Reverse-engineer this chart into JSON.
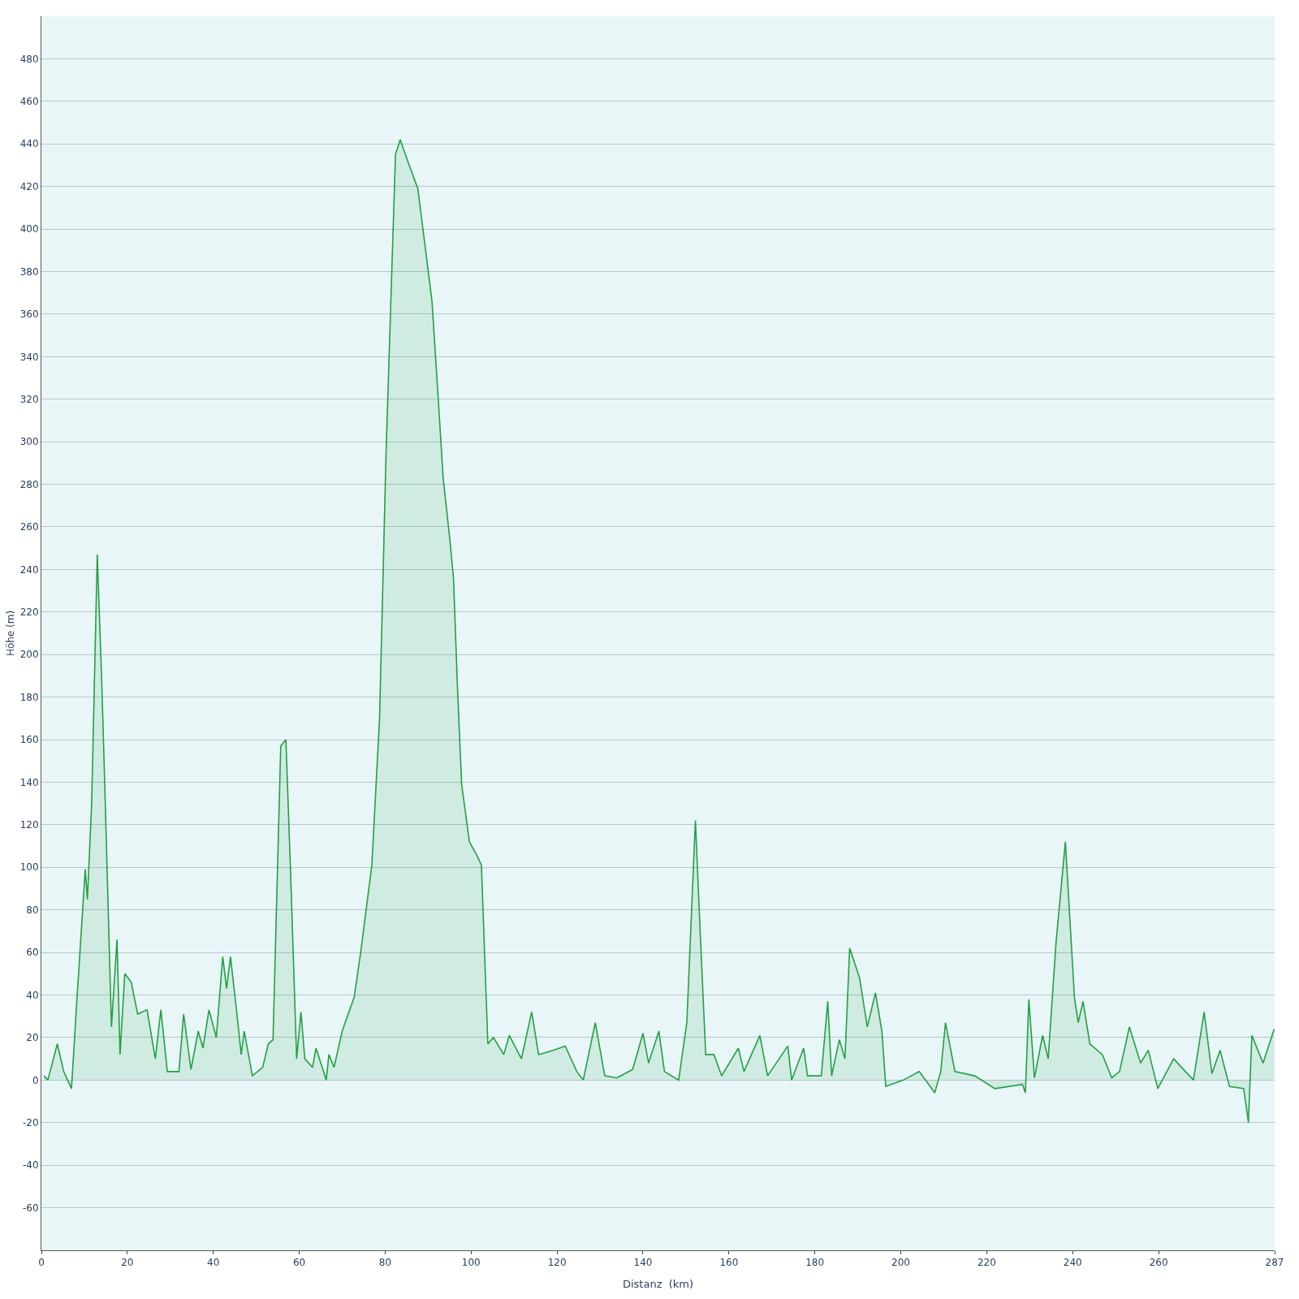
{
  "chart_data": {
    "type": "area",
    "xlabel": "Distanz  (km)",
    "ylabel": "Höhe (m)",
    "xlim": [
      0,
      287
    ],
    "ylim": [
      -80,
      500
    ],
    "xticks": [
      0,
      20,
      40,
      60,
      80,
      100,
      120,
      140,
      160,
      180,
      200,
      220,
      240,
      260,
      287
    ],
    "yticks": [
      {
        "value": -80,
        "label": null
      },
      -60,
      -40,
      -20,
      0,
      20,
      40,
      60,
      80,
      100,
      120,
      140,
      160,
      180,
      200,
      220,
      240,
      260,
      280,
      300,
      320,
      340,
      360,
      380,
      400,
      420,
      440,
      460,
      480,
      {
        "value": 500,
        "label": null
      }
    ],
    "grid": "y",
    "series": [
      {
        "color": "#22a045",
        "x": [
          0.6,
          1.5,
          3.7,
          5.2,
          7,
          8.3,
          10.2,
          10.7,
          11.7,
          13,
          14,
          14.8,
          16.3,
          17.6,
          18.3,
          19.4,
          20.9,
          22.4,
          24.6,
          26.5,
          27.8,
          29.3,
          32,
          33.1,
          34.8,
          36.5,
          37.6,
          39,
          40.7,
          42.2,
          43.1,
          44,
          45.4,
          46.5,
          47.2,
          49.1,
          51.5,
          52.8,
          53.9,
          55.7,
          56.9,
          58,
          59.4,
          60.4,
          61.3,
          63.1,
          63.9,
          66.3,
          66.9,
          68.1,
          70,
          72.8,
          74.3,
          76.9,
          78.7,
          80.2,
          82.4,
          83.5,
          85.4,
          87.6,
          89.1,
          90.9,
          92.2,
          93.5,
          95,
          95.9,
          96.8,
          97.8,
          99.6,
          101.5,
          102.4,
          103.9,
          105.2,
          107.6,
          108.9,
          111.7,
          114.1,
          115.7,
          119.1,
          121.9,
          124.6,
          126.1,
          128.9,
          131.1,
          133.9,
          137.6,
          140,
          141.3,
          143.7,
          145,
          148.3,
          150.2,
          152.2,
          153.3,
          154.6,
          156.5,
          158.3,
          162.2,
          163.5,
          167.2,
          169,
          173.7,
          174.6,
          177.4,
          178.3,
          181.5,
          183,
          183.9,
          185.7,
          187,
          188.1,
          190.4,
          192.2,
          194.1,
          195.6,
          196.5,
          200.6,
          204.3,
          207.9,
          209.3,
          210.4,
          212.6,
          217.2,
          221.9,
          228.3,
          229,
          229.8,
          231.1,
          233,
          234.3,
          236.1,
          238.3,
          240.4,
          241.3,
          242.4,
          244,
          246.9,
          249.1,
          250.9,
          253.2,
          255.8,
          257.6,
          259.8,
          263.5,
          268.1,
          270.6,
          272.4,
          274.3,
          276.5,
          279.8,
          280.9,
          281.7,
          284.3,
          286.9
        ],
        "values": [
          2,
          0,
          17,
          4,
          -4,
          39,
          99,
          85,
          130,
          247,
          190,
          135,
          25,
          66,
          12,
          50,
          46,
          31,
          33,
          10,
          33,
          4,
          4,
          31,
          5,
          23,
          15,
          33,
          20,
          58,
          43,
          58,
          33,
          12,
          23,
          2,
          6,
          17,
          19,
          157,
          160,
          97,
          10,
          32,
          10,
          6,
          15,
          0,
          12,
          6,
          23,
          39,
          60,
          101,
          170,
          294,
          435,
          442,
          431,
          419,
          395,
          366,
          325,
          283,
          255,
          236,
          186,
          139,
          112,
          105,
          101,
          17,
          20,
          12,
          21,
          10,
          32,
          12,
          14,
          16,
          4,
          0,
          27,
          2,
          1,
          5,
          22,
          8,
          23,
          4,
          0,
          27,
          122,
          70,
          12,
          12,
          2,
          15,
          4,
          21,
          2,
          16,
          0,
          15,
          2,
          2,
          37,
          2,
          19,
          10,
          62,
          48,
          25,
          41,
          23,
          -3,
          0,
          4,
          -6,
          4,
          27,
          4,
          2,
          -4,
          -2,
          -6,
          38,
          1,
          21,
          10,
          64,
          112,
          39,
          27,
          37,
          17,
          12,
          1,
          4,
          25,
          8,
          14,
          -4,
          10,
          0,
          32,
          3,
          14,
          -3,
          -4,
          -20,
          21,
          8,
          24
        ]
      }
    ]
  }
}
